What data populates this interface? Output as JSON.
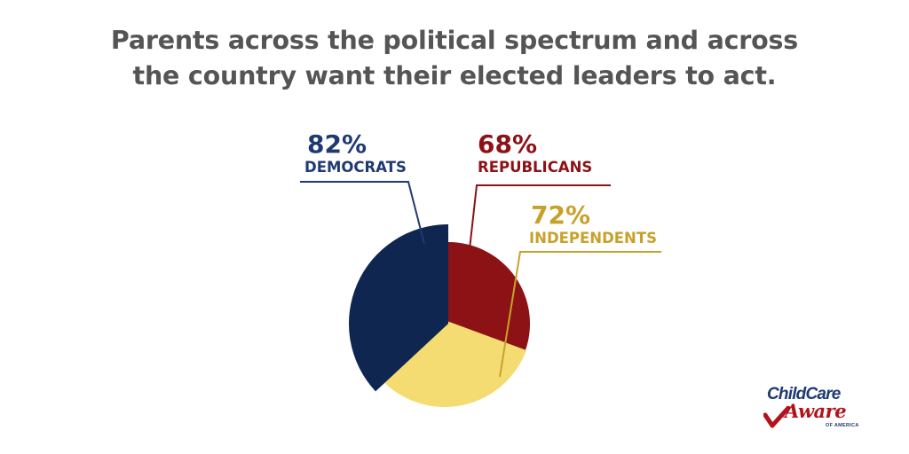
{
  "title_lines": [
    "Parents across the political spectrum and across",
    "the country want their elected leaders to act."
  ],
  "chart_data": {
    "type": "pie",
    "title": "Parents across the political spectrum and across the country want their elected leaders to act.",
    "slices": [
      {
        "name": "DEMOCRATS",
        "label": "82%",
        "value": 82,
        "color": "#0f2650"
      },
      {
        "name": "REPUBLICANS",
        "label": "68%",
        "value": 68,
        "color": "#8c1216"
      },
      {
        "name": "INDEPENDENTS",
        "label": "72%",
        "value": 72,
        "color": "#f5dc72"
      }
    ],
    "label_colors": {
      "DEMOCRATS": "#1f3a73",
      "REPUBLICANS": "#8c1216",
      "INDEPENDENTS": "#c7a22a"
    },
    "legend": "none",
    "grid": false
  },
  "logo": {
    "line1": "ChildCare",
    "line2": "Aware",
    "line3": "OF AMERICA"
  },
  "colors": {
    "title": "#555555",
    "navy": "#0f2650",
    "red": "#8c1216",
    "yellow": "#f5dc72",
    "gold_text": "#c7a22a",
    "background": "#ffffff"
  }
}
